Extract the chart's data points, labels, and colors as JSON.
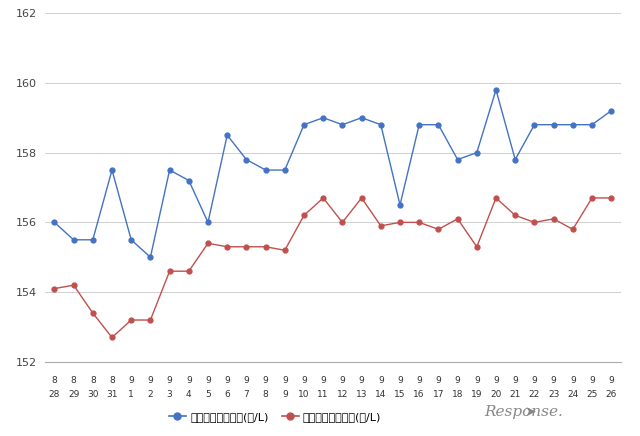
{
  "x_labels_top": [
    "8",
    "8",
    "8",
    "8",
    "9",
    "9",
    "9",
    "9",
    "9",
    "9",
    "9",
    "9",
    "9",
    "9",
    "9",
    "9",
    "9",
    "9",
    "9",
    "9",
    "9",
    "9",
    "9",
    "9",
    "9",
    "9",
    "9",
    "9",
    "9",
    "9"
  ],
  "x_labels_bottom": [
    "28",
    "29",
    "30",
    "31",
    "1",
    "2",
    "3",
    "4",
    "5",
    "6",
    "7",
    "8",
    "9",
    "10",
    "11",
    "12",
    "13",
    "14",
    "15",
    "16",
    "17",
    "18",
    "19",
    "20",
    "21",
    "22",
    "23",
    "24",
    "25",
    "26"
  ],
  "blue_data": [
    156.0,
    155.5,
    155.5,
    157.5,
    155.5,
    155.0,
    157.5,
    157.2,
    156.0,
    158.5,
    157.8,
    157.5,
    157.5,
    158.8,
    159.0,
    158.8,
    159.0,
    158.8,
    156.5,
    158.8,
    158.8,
    157.8,
    158.0,
    159.8,
    157.8,
    158.8,
    158.8,
    158.8,
    158.8,
    159.2
  ],
  "red_data": [
    154.1,
    154.2,
    153.4,
    152.7,
    153.2,
    153.2,
    154.6,
    154.6,
    155.4,
    155.3,
    155.3,
    155.3,
    155.2,
    156.2,
    156.7,
    156.0,
    156.7,
    155.9,
    156.0,
    156.0,
    155.8,
    156.1,
    155.3,
    156.7,
    156.2,
    156.0,
    156.1,
    155.8,
    156.7,
    156.7
  ],
  "ylim": [
    152,
    162
  ],
  "yticks": [
    152,
    154,
    156,
    158,
    160,
    162
  ],
  "blue_color": "#4472C4",
  "red_color": "#C0504D",
  "background_color": "#ffffff",
  "grid_color": "#d0d0d0",
  "legend_blue": "ハイオク看板価格(円/L)",
  "legend_red": "ハイオク実売価格(円/L)"
}
